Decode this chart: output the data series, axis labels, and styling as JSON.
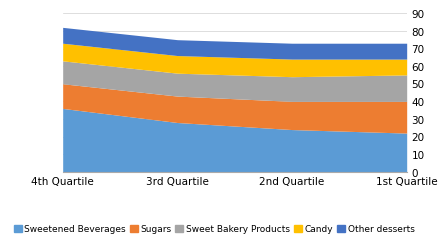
{
  "categories": [
    "4th Quartile",
    "3rd Quartile",
    "2nd Quartile",
    "1st Quartile"
  ],
  "series": {
    "Sweetened Beverages": [
      36,
      28,
      24,
      22
    ],
    "Sugars": [
      14,
      15,
      16,
      18
    ],
    "Sweet Bakery Products": [
      13,
      13,
      14,
      15
    ],
    "Candy": [
      10,
      10,
      10,
      9
    ],
    "Other desserts": [
      9,
      9,
      9,
      9
    ]
  },
  "colors": {
    "Sweetened Beverages": "#5B9BD5",
    "Sugars": "#ED7D31",
    "Sweet Bakery Products": "#A5A5A5",
    "Candy": "#FFC000",
    "Other desserts": "#4472C4"
  },
  "ylim": [
    0,
    90
  ],
  "yticks": [
    0,
    10,
    20,
    30,
    40,
    50,
    60,
    70,
    80,
    90
  ],
  "legend_order": [
    "Sweetened Beverages",
    "Sugars",
    "Sweet Bakery Products",
    "Candy",
    "Other desserts"
  ],
  "legend_fontsize": 6.5,
  "tick_fontsize": 7.5,
  "background_color": "#ffffff",
  "plot_bg_color": "#ffffff"
}
